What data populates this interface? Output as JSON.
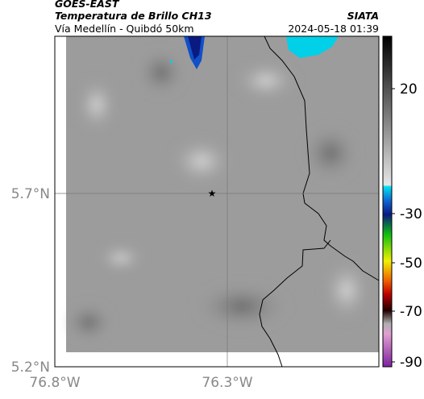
{
  "header": {
    "satellite": "GOES-EAST",
    "product": "Temperatura de Brillo CH13",
    "source": "SIATA",
    "region": "Vía Medellín - Quibdó 50km",
    "timestamp": "2024-05-18 01:39"
  },
  "map": {
    "lat_labels": [
      "5.7°N",
      "5.2°N"
    ],
    "lon_labels": [
      "76.8°W",
      "76.3°W"
    ]
  },
  "colorbar": {
    "ticks": [
      20,
      -30,
      -50,
      -70,
      -90
    ]
  }
}
